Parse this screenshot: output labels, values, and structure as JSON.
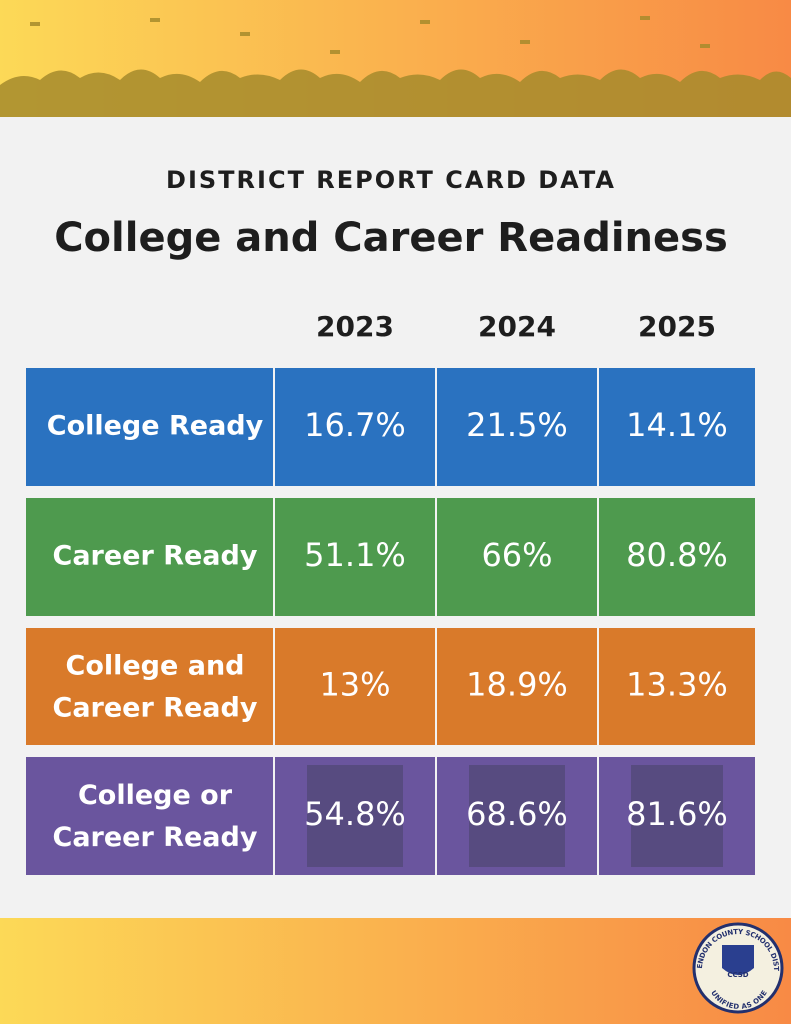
{
  "header": {
    "kicker": "DISTRICT REPORT CARD DATA",
    "title": "College and Career Readiness"
  },
  "table": {
    "columns": [
      "2023",
      "2024",
      "2025"
    ],
    "rows": [
      {
        "label": "College Ready",
        "color": "#2a72c0",
        "cells": [
          "16.7%",
          "21.5%",
          "14.1%"
        ]
      },
      {
        "label": "Career Ready",
        "color": "#4e9a4e",
        "cells": [
          "51.1%",
          "66%",
          "80.8%"
        ]
      },
      {
        "label": "College and Career Ready",
        "color": "#d97a2a",
        "cells": [
          "13%",
          "18.9%",
          "13.3%"
        ]
      },
      {
        "label": "College or Career Ready",
        "color": "#6a559e",
        "cells": [
          "54.8%",
          "68.6%",
          "81.6%"
        ]
      }
    ]
  },
  "logo": {
    "name": "CLARENDON COUNTY SCHOOL DISTRICT",
    "initials": "CCSD",
    "motto": "UNIFIED AS ONE"
  }
}
